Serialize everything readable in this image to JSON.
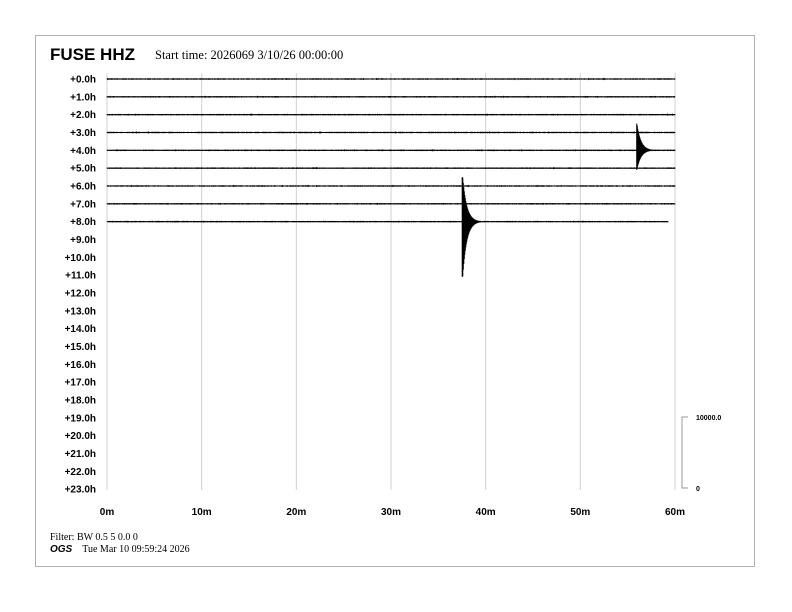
{
  "header": {
    "title": "FUSE HHZ",
    "subtitle": "Start time: 2026069  3/10/26 00:00:00"
  },
  "footer": {
    "filter": "Filter: BW 0.5 5 0.0 0",
    "org": "OGS",
    "timestamp": "Tue Mar 10 09:59:24 2026"
  },
  "colors": {
    "trace": "#000000",
    "grid": "#d0d0d0",
    "frame": "#b0b0b0"
  },
  "chart_data": {
    "type": "helicorder",
    "title": "FUSE HHZ",
    "row_labels": [
      "+0.0h",
      "+1.0h",
      "+2.0h",
      "+3.0h",
      "+4.0h",
      "+5.0h",
      "+6.0h",
      "+7.0h",
      "+8.0h",
      "+9.0h",
      "+10.0h",
      "+11.0h",
      "+12.0h",
      "+13.0h",
      "+14.0h",
      "+15.0h",
      "+16.0h",
      "+17.0h",
      "+18.0h",
      "+19.0h",
      "+20.0h",
      "+21.0h",
      "+22.0h",
      "+23.0h"
    ],
    "x_ticks": [
      "0m",
      "10m",
      "20m",
      "30m",
      "40m",
      "50m",
      "60m"
    ],
    "xlim": [
      0,
      60
    ],
    "grid": "vertical",
    "rows_with_data": 9,
    "last_row_end_minute": 59.3,
    "events": [
      {
        "row": 4,
        "minute": 56.0,
        "peak_up_rows": 1.5,
        "peak_down_rows": 1.1
      },
      {
        "row": 8,
        "minute": 37.6,
        "peak_up_rows": 2.5,
        "peak_down_rows": 3.1
      }
    ],
    "amplitude_scale": {
      "top_label": "10000.0",
      "bottom_label": "0"
    }
  }
}
